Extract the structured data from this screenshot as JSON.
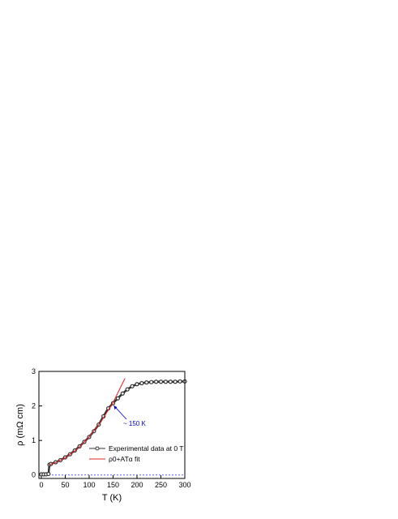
{
  "chart_data": {
    "type": "line",
    "xlabel": "T (K)",
    "ylabel": "ρ (mΩ cm)",
    "xlim": [
      -5,
      300
    ],
    "ylim": [
      -0.1,
      3.0
    ],
    "xticks": [
      0,
      50,
      100,
      150,
      200,
      250,
      300
    ],
    "yticks": [
      0,
      1,
      2,
      3
    ],
    "hline": {
      "value": 0,
      "color": "#3333cc"
    },
    "annotation": {
      "text": "~ 150 K",
      "color": "#0000cc"
    },
    "legend": "lower right",
    "series": [
      {
        "name": "Experimental data at 0 T",
        "color": "#333333",
        "marker": "circle",
        "x": [
          0,
          5,
          10,
          15,
          17,
          20,
          30,
          40,
          50,
          60,
          70,
          80,
          90,
          100,
          110,
          120,
          130,
          140,
          150,
          160,
          170,
          180,
          190,
          200,
          210,
          220,
          230,
          240,
          250,
          260,
          270,
          280,
          290,
          300
        ],
        "values": [
          0.02,
          0.02,
          0.02,
          0.03,
          0.3,
          0.32,
          0.37,
          0.43,
          0.51,
          0.6,
          0.71,
          0.83,
          0.96,
          1.1,
          1.27,
          1.46,
          1.7,
          1.93,
          2.08,
          2.22,
          2.36,
          2.48,
          2.57,
          2.63,
          2.66,
          2.68,
          2.69,
          2.7,
          2.7,
          2.7,
          2.7,
          2.7,
          2.71,
          2.71
        ]
      },
      {
        "name": "ρ0+ATα fit",
        "color": "#e02020",
        "x": [
          17,
          30,
          50,
          75,
          100,
          125,
          150,
          175
        ],
        "values": [
          0.3,
          0.36,
          0.5,
          0.75,
          1.1,
          1.55,
          2.1,
          2.8
        ]
      }
    ]
  }
}
